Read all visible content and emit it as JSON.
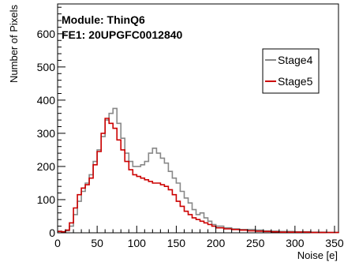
{
  "chart_data": {
    "type": "line",
    "title": "",
    "xlabel": "Noise [e]",
    "ylabel": "Number of Pixels",
    "xlim": [
      0,
      355
    ],
    "ylim": [
      0,
      690
    ],
    "x_ticks": [
      0,
      50,
      100,
      150,
      200,
      250,
      300,
      350
    ],
    "y_ticks": [
      0,
      100,
      200,
      300,
      400,
      500,
      600
    ],
    "grid": false,
    "legend_position": "top-right",
    "annotations": [
      "Module: ThinQ6",
      "FE1: 20UPGFC0012840"
    ],
    "series": [
      {
        "name": "Stage4",
        "color": "#888888",
        "x": [
          0,
          5,
          10,
          15,
          20,
          25,
          30,
          35,
          40,
          45,
          50,
          55,
          60,
          65,
          70,
          75,
          80,
          85,
          90,
          95,
          100,
          105,
          110,
          115,
          120,
          125,
          130,
          135,
          140,
          145,
          150,
          155,
          160,
          165,
          170,
          175,
          180,
          185,
          190,
          195,
          200,
          210,
          220,
          230,
          240,
          250,
          260,
          270,
          280,
          300,
          320,
          340,
          355
        ],
        "y": [
          5,
          3,
          6,
          20,
          55,
          95,
          125,
          150,
          175,
          215,
          250,
          290,
          340,
          360,
          375,
          330,
          285,
          240,
          215,
          200,
          200,
          205,
          215,
          240,
          255,
          240,
          225,
          210,
          185,
          165,
          150,
          125,
          105,
          90,
          70,
          55,
          60,
          45,
          35,
          25,
          20,
          15,
          12,
          10,
          10,
          8,
          6,
          5,
          4,
          3,
          2,
          1,
          0
        ]
      },
      {
        "name": "Stage5",
        "color": "#cc0000",
        "x": [
          0,
          5,
          10,
          15,
          20,
          25,
          30,
          35,
          40,
          45,
          50,
          55,
          60,
          65,
          70,
          75,
          80,
          85,
          90,
          95,
          100,
          105,
          110,
          115,
          120,
          125,
          130,
          135,
          140,
          145,
          150,
          155,
          160,
          165,
          170,
          175,
          180,
          185,
          190,
          195,
          200,
          210,
          220,
          230,
          240,
          250,
          260,
          270,
          280,
          300,
          320,
          340,
          355
        ],
        "y": [
          4,
          3,
          8,
          30,
          75,
          115,
          135,
          145,
          165,
          205,
          245,
          300,
          345,
          330,
          315,
          280,
          250,
          215,
          190,
          175,
          170,
          165,
          160,
          155,
          150,
          150,
          145,
          140,
          130,
          115,
          95,
          80,
          65,
          55,
          45,
          40,
          35,
          30,
          25,
          20,
          15,
          12,
          10,
          8,
          6,
          5,
          4,
          3,
          2,
          2,
          1,
          1,
          0
        ]
      }
    ]
  }
}
